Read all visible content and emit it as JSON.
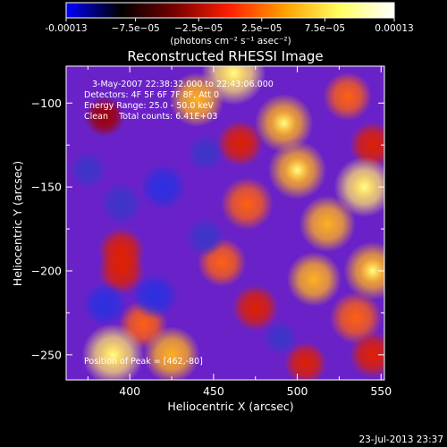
{
  "chart_data": {
    "type": "heatmap",
    "title": "Reconstructed RHESSI Image",
    "xlabel": "Heliocentric X (arcsec)",
    "ylabel": "Heliocentric Y (arcsec)",
    "xlim": [
      362,
      552
    ],
    "ylim": [
      -265,
      -78
    ],
    "xticks": [
      400,
      450,
      500,
      550
    ],
    "yticks": [
      -250,
      -200,
      -150,
      -100
    ],
    "colorbar": {
      "range": [
        -0.00013,
        0.00013
      ],
      "ticks": [
        {
          "value": -0.00013,
          "label": "-0.00013"
        },
        {
          "value": -7.5e-05,
          "label": "−7.5e−05"
        },
        {
          "value": -2.5e-05,
          "label": "−2.5e−05"
        },
        {
          "value": 2.5e-05,
          "label": "2.5e−05"
        },
        {
          "value": 7.5e-05,
          "label": "7.5e−05"
        },
        {
          "value": 0.00013,
          "label": "0.00013"
        }
      ],
      "unit_label": "(photons cm⁻² s⁻¹ asec⁻²)",
      "palette": [
        "#0000ff",
        "#000000",
        "#7a0000",
        "#ff2000",
        "#ffa000",
        "#ffff60",
        "#ffffff"
      ]
    },
    "annotations": [
      "3-May-2007 22:38:32.000 to 22:43:06.000",
      "Detectors: 4F 5F 6F 7F 8F, Att 0",
      "Energy Range: 25.0 - 50.0 keV",
      "Clean    Total counts: 6.41E+03"
    ],
    "peak_label": "Position of Peak = [462,-80]",
    "background_color": "#6a22c8",
    "blobs": [
      {
        "x": 462,
        "y": -82,
        "v": 1.0
      },
      {
        "x": 440,
        "y": -98,
        "v": 0.75
      },
      {
        "x": 492,
        "y": -112,
        "v": 0.85
      },
      {
        "x": 530,
        "y": -96,
        "v": 0.6
      },
      {
        "x": 545,
        "y": -125,
        "v": 0.55
      },
      {
        "x": 466,
        "y": -124,
        "v": 0.55
      },
      {
        "x": 500,
        "y": -140,
        "v": 0.85
      },
      {
        "x": 540,
        "y": -150,
        "v": 0.9
      },
      {
        "x": 470,
        "y": -160,
        "v": 0.7
      },
      {
        "x": 518,
        "y": -172,
        "v": 0.8
      },
      {
        "x": 455,
        "y": -195,
        "v": 0.6
      },
      {
        "x": 510,
        "y": -205,
        "v": 0.75
      },
      {
        "x": 545,
        "y": -200,
        "v": 0.85
      },
      {
        "x": 475,
        "y": -222,
        "v": 0.55
      },
      {
        "x": 535,
        "y": -228,
        "v": 0.7
      },
      {
        "x": 395,
        "y": -200,
        "v": 0.55
      },
      {
        "x": 408,
        "y": -232,
        "v": 0.6
      },
      {
        "x": 390,
        "y": -250,
        "v": 0.95
      },
      {
        "x": 425,
        "y": -250,
        "v": 0.8
      },
      {
        "x": 505,
        "y": -255,
        "v": 0.45
      },
      {
        "x": 545,
        "y": -250,
        "v": 0.55
      },
      {
        "x": 385,
        "y": -108,
        "v": 0.4
      },
      {
        "x": 395,
        "y": -188,
        "v": 0.55
      },
      {
        "x": 420,
        "y": -150,
        "v": -0.55
      },
      {
        "x": 395,
        "y": -160,
        "v": -0.45
      },
      {
        "x": 415,
        "y": -215,
        "v": -0.55
      },
      {
        "x": 385,
        "y": -220,
        "v": -0.5
      },
      {
        "x": 445,
        "y": -180,
        "v": -0.35
      },
      {
        "x": 375,
        "y": -140,
        "v": -0.3
      },
      {
        "x": 445,
        "y": -130,
        "v": -0.3
      },
      {
        "x": 490,
        "y": -240,
        "v": -0.25
      }
    ]
  },
  "footer": {
    "timestamp": "23-Jul-2013 23:37"
  }
}
